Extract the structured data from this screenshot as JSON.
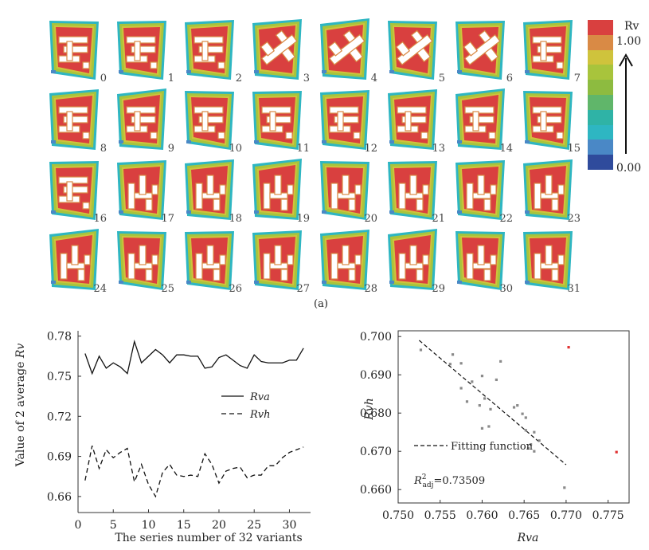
{
  "panel_a": {
    "label": "(a)",
    "variant_labels": [
      "0",
      "1",
      "2",
      "3",
      "4",
      "5",
      "6",
      "7",
      "8",
      "9",
      "10",
      "11",
      "12",
      "13",
      "14",
      "15",
      "16",
      "17",
      "18",
      "19",
      "20",
      "21",
      "22",
      "23",
      "24",
      "25",
      "26",
      "27",
      "28",
      "29",
      "30",
      "31"
    ],
    "legend": {
      "title": "Rv",
      "max_label": "1.00",
      "min_label": "0.00",
      "colors": [
        "#d9403f",
        "#d98a45",
        "#cfc33c",
        "#a8c43c",
        "#8dbb40",
        "#60b66a",
        "#2fb3a6",
        "#2eb6c2",
        "#4a88c6",
        "#2f4b9c"
      ]
    }
  },
  "chart_data": [
    {
      "type": "line",
      "xlabel": "The series number of 32 variants",
      "ylabel": "Value of 2 average Rv",
      "xlim": [
        0,
        33
      ],
      "ylim": [
        0.648,
        0.784
      ],
      "xticks": [
        0,
        5,
        10,
        15,
        20,
        25,
        30
      ],
      "yticks": [
        0.66,
        0.69,
        0.72,
        0.75,
        0.78
      ],
      "ytick_labels": [
        "0.66",
        "0.69",
        "0.72",
        "0.75",
        "0.78"
      ],
      "legend_position": "right",
      "x": [
        1,
        2,
        3,
        4,
        5,
        6,
        7,
        8,
        9,
        10,
        11,
        12,
        13,
        14,
        15,
        16,
        17,
        18,
        19,
        20,
        21,
        22,
        23,
        24,
        25,
        26,
        27,
        28,
        29,
        30,
        31,
        32
      ],
      "series": [
        {
          "name": "Rva",
          "style": "solid",
          "values": [
            0.767,
            0.752,
            0.765,
            0.756,
            0.76,
            0.757,
            0.752,
            0.776,
            0.76,
            0.765,
            0.77,
            0.766,
            0.76,
            0.766,
            0.766,
            0.765,
            0.765,
            0.756,
            0.757,
            0.764,
            0.766,
            0.762,
            0.758,
            0.756,
            0.766,
            0.761,
            0.76,
            0.76,
            0.76,
            0.762,
            0.762,
            0.771
          ]
        },
        {
          "name": "Rvh",
          "style": "dashed",
          "values": [
            0.672,
            0.698,
            0.681,
            0.695,
            0.689,
            0.693,
            0.696,
            0.671,
            0.684,
            0.669,
            0.66,
            0.678,
            0.684,
            0.676,
            0.675,
            0.676,
            0.675,
            0.692,
            0.684,
            0.67,
            0.679,
            0.681,
            0.682,
            0.674,
            0.676,
            0.676,
            0.683,
            0.683,
            0.689,
            0.693,
            0.695,
            0.697
          ]
        }
      ]
    },
    {
      "type": "scatter",
      "xlabel": "Rva",
      "ylabel": "Rvh",
      "xlim": [
        0.75,
        0.7775
      ],
      "ylim": [
        0.6565,
        0.7015
      ],
      "xticks": [
        0.75,
        0.755,
        0.76,
        0.765,
        0.77,
        0.775
      ],
      "xtick_labels": [
        "0.750",
        "0.755",
        "0.760",
        "0.765",
        "0.770",
        "0.775"
      ],
      "yticks": [
        0.66,
        0.67,
        0.68,
        0.69,
        0.7
      ],
      "ytick_labels": [
        "0.660",
        "0.670",
        "0.680",
        "0.690",
        "0.700"
      ],
      "fit_label": "Fitting function",
      "r2_label": "R²adj=0.73509",
      "fit_line": {
        "x": [
          0.7525,
          0.77
        ],
        "y": [
          0.699,
          0.6665
        ]
      },
      "points": [
        {
          "x": 0.7527,
          "y": 0.6965,
          "outlier": false
        },
        {
          "x": 0.7565,
          "y": 0.6953,
          "outlier": false
        },
        {
          "x": 0.7562,
          "y": 0.6928,
          "outlier": false
        },
        {
          "x": 0.7575,
          "y": 0.693,
          "outlier": false
        },
        {
          "x": 0.7588,
          "y": 0.6882,
          "outlier": false
        },
        {
          "x": 0.76,
          "y": 0.6897,
          "outlier": false
        },
        {
          "x": 0.7617,
          "y": 0.6887,
          "outlier": false
        },
        {
          "x": 0.7622,
          "y": 0.6935,
          "outlier": false
        },
        {
          "x": 0.7575,
          "y": 0.6865,
          "outlier": false
        },
        {
          "x": 0.7582,
          "y": 0.683,
          "outlier": false
        },
        {
          "x": 0.7597,
          "y": 0.682,
          "outlier": false
        },
        {
          "x": 0.7603,
          "y": 0.6838,
          "outlier": false
        },
        {
          "x": 0.761,
          "y": 0.681,
          "outlier": false
        },
        {
          "x": 0.76,
          "y": 0.676,
          "outlier": false
        },
        {
          "x": 0.7608,
          "y": 0.6765,
          "outlier": false
        },
        {
          "x": 0.7638,
          "y": 0.6815,
          "outlier": false
        },
        {
          "x": 0.7642,
          "y": 0.682,
          "outlier": false
        },
        {
          "x": 0.7648,
          "y": 0.6798,
          "outlier": false
        },
        {
          "x": 0.7652,
          "y": 0.6788,
          "outlier": false
        },
        {
          "x": 0.7652,
          "y": 0.6755,
          "outlier": false
        },
        {
          "x": 0.7658,
          "y": 0.6718,
          "outlier": false
        },
        {
          "x": 0.7662,
          "y": 0.675,
          "outlier": false
        },
        {
          "x": 0.7655,
          "y": 0.6708,
          "outlier": false
        },
        {
          "x": 0.7662,
          "y": 0.67,
          "outlier": false
        },
        {
          "x": 0.7668,
          "y": 0.6728,
          "outlier": false
        },
        {
          "x": 0.7698,
          "y": 0.6605,
          "outlier": false
        },
        {
          "x": 0.7703,
          "y": 0.6972,
          "outlier": true
        },
        {
          "x": 0.776,
          "y": 0.6698,
          "outlier": true
        }
      ],
      "colors": {
        "point": "#8a8a8a",
        "outlier": "#e03030"
      }
    }
  ]
}
